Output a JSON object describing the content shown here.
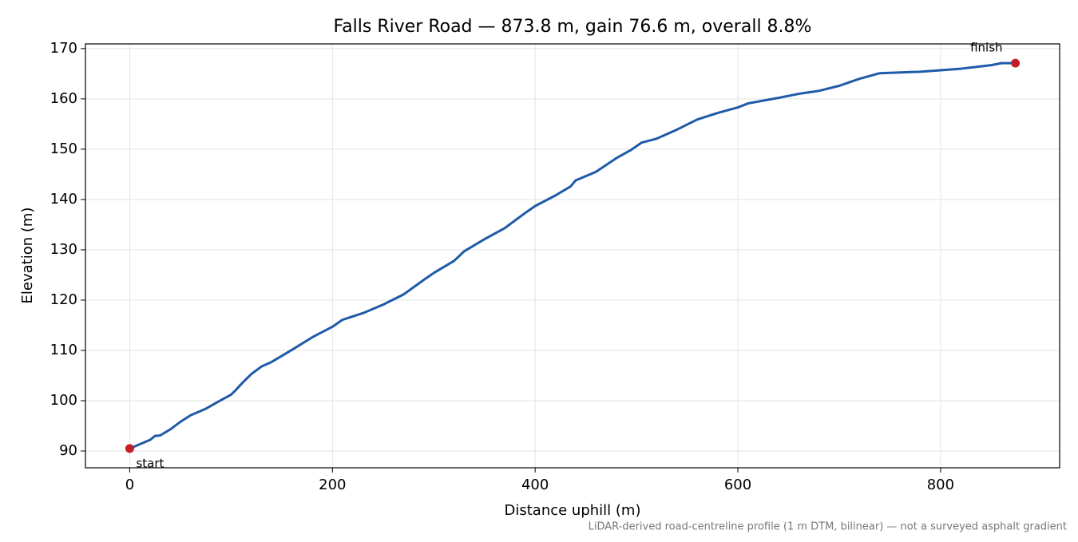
{
  "chart_data": {
    "type": "line",
    "title": "Falls River Road — 873.8 m, gain 76.6 m, overall 8.8%",
    "x_label": "Distance uphill (m)",
    "y_label": "Elevation (m)",
    "footnote": "LiDAR-derived road-centreline profile (1 m DTM, bilinear) — not a surveyed asphalt gradient",
    "x": [
      0,
      20,
      25,
      30,
      40,
      50,
      60,
      75,
      90,
      100,
      105,
      110,
      120,
      130,
      140,
      160,
      180,
      200,
      210,
      230,
      250,
      270,
      290,
      300,
      320,
      330,
      350,
      370,
      390,
      400,
      420,
      435,
      440,
      460,
      480,
      495,
      505,
      520,
      540,
      560,
      580,
      600,
      610,
      640,
      660,
      680,
      700,
      720,
      740,
      780,
      820,
      850,
      860,
      873.8
    ],
    "values": [
      90.5,
      92.2,
      93.0,
      93.1,
      94.3,
      95.8,
      97.1,
      98.4,
      100.1,
      101.2,
      102.2,
      103.3,
      105.3,
      106.8,
      107.7,
      110.1,
      112.6,
      114.7,
      116.1,
      117.4,
      119.1,
      121.1,
      124.0,
      125.4,
      127.8,
      129.7,
      132.1,
      134.3,
      137.3,
      138.7,
      140.8,
      142.6,
      143.8,
      145.5,
      148.2,
      149.9,
      151.3,
      152.1,
      153.9,
      155.9,
      157.2,
      158.3,
      159.1,
      160.2,
      161.0,
      161.6,
      162.6,
      164.0,
      165.1,
      165.4,
      166.0,
      166.7,
      167.1,
      167.1
    ],
    "color": "#1f5aa8",
    "marker_color": "#c41e2a",
    "annotations": [
      {
        "text": "start",
        "x": 0,
        "y": 90.5
      },
      {
        "text": "finish",
        "x": 873.8,
        "y": 167.1
      }
    ],
    "xlim": [
      -43.69,
      917.49
    ],
    "ylim": [
      86.67,
      170.93
    ],
    "xticks": [
      0,
      200,
      400,
      600,
      800
    ],
    "yticks": [
      90,
      100,
      110,
      120,
      130,
      140,
      150,
      160,
      170
    ],
    "grid": true
  }
}
